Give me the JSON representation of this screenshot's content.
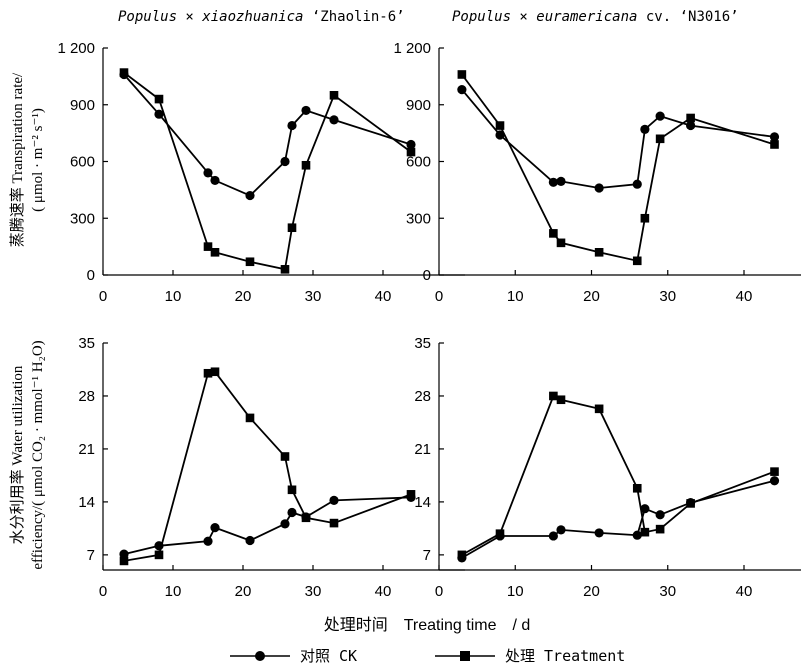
{
  "chart_data": [
    {
      "type": "line",
      "title": "Populus × xiaozhuanica ‘Zhaolin-6’",
      "xlim": [
        0,
        45
      ],
      "ylim": [
        0,
        1200
      ],
      "xticks": [
        "0",
        "10",
        "20",
        "30",
        "40"
      ],
      "yticks": [
        "0",
        "300",
        "600",
        "900",
        "1 200"
      ],
      "series": [
        {
          "name": "对照 CK",
          "x": [
            3,
            8,
            15,
            16,
            21,
            26,
            27,
            29,
            33,
            44
          ],
          "y": [
            1060,
            850,
            540,
            500,
            420,
            600,
            790,
            870,
            820,
            690
          ]
        },
        {
          "name": "处理 Treatment",
          "x": [
            3,
            8,
            15,
            16,
            21,
            26,
            27,
            29,
            33,
            44
          ],
          "y": [
            1070,
            930,
            150,
            120,
            70,
            30,
            250,
            580,
            950,
            650
          ]
        }
      ]
    },
    {
      "type": "line",
      "title": "Populus × euramericana cv. ‘N3016’",
      "xlim": [
        0,
        45
      ],
      "ylim": [
        0,
        1200
      ],
      "xticks": [
        "0",
        "10",
        "20",
        "30",
        "40"
      ],
      "yticks": [
        "0",
        "300",
        "600",
        "900",
        "1 200"
      ],
      "series": [
        {
          "name": "对照 CK",
          "x": [
            3,
            8,
            15,
            16,
            21,
            26,
            27,
            29,
            33,
            44
          ],
          "y": [
            980,
            740,
            490,
            495,
            460,
            480,
            770,
            840,
            790,
            730
          ]
        },
        {
          "name": "处理 Treatment",
          "x": [
            3,
            8,
            15,
            16,
            21,
            26,
            27,
            29,
            33,
            44
          ],
          "y": [
            1060,
            790,
            220,
            170,
            120,
            75,
            300,
            720,
            830,
            690
          ]
        }
      ]
    },
    {
      "type": "line",
      "title": "",
      "xlim": [
        0,
        45
      ],
      "ylim": [
        5,
        35
      ],
      "xticks": [
        "0",
        "10",
        "20",
        "30",
        "40"
      ],
      "yticks": [
        "7",
        "14",
        "21",
        "28",
        "35"
      ],
      "series": [
        {
          "name": "对照 CK",
          "x": [
            3,
            8,
            15,
            16,
            21,
            26,
            27,
            29,
            33,
            44
          ],
          "y": [
            7.1,
            8.2,
            8.8,
            10.6,
            8.9,
            11.1,
            12.6,
            12.0,
            14.2,
            14.6
          ]
        },
        {
          "name": "处理 Treatment",
          "x": [
            3,
            8,
            15,
            16,
            21,
            26,
            27,
            29,
            33,
            44
          ],
          "y": [
            6.2,
            7.0,
            31.0,
            31.2,
            25.1,
            20.0,
            15.6,
            11.9,
            11.2,
            15.0
          ]
        }
      ]
    },
    {
      "type": "line",
      "title": "",
      "xlim": [
        0,
        45
      ],
      "ylim": [
        5,
        35
      ],
      "xticks": [
        "0",
        "10",
        "20",
        "30",
        "40"
      ],
      "yticks": [
        "7",
        "14",
        "21",
        "28",
        "35"
      ],
      "series": [
        {
          "name": "对照 CK",
          "x": [
            3,
            8,
            15,
            16,
            21,
            26,
            27,
            29,
            33,
            44
          ],
          "y": [
            6.6,
            9.5,
            9.5,
            10.3,
            9.9,
            9.6,
            13.1,
            12.3,
            13.9,
            16.8
          ]
        },
        {
          "name": "处理 Treatment",
          "x": [
            3,
            8,
            15,
            16,
            21,
            26,
            27,
            29,
            33,
            44
          ],
          "y": [
            7.0,
            9.8,
            28.0,
            27.5,
            26.3,
            15.8,
            10.0,
            10.4,
            13.8,
            18.0
          ]
        }
      ]
    }
  ],
  "labels": {
    "title_left_italic": "Populus × xiaozhuanica",
    "title_left_cultivar": " ‘Zhaolin-6’",
    "title_right_italic": "Populus × euramericana",
    "title_right_cultivar": " cv. ‘N3016’",
    "ylabel_top_line1": "蒸腾速率 Transpiration rate/",
    "ylabel_top_line2": "( μmol · m⁻² s⁻¹)",
    "ylabel_bottom_line1": "水分利用率 Water utilization",
    "ylabel_bottom_line2": "efficiency/( μmol CO₂ · mmol⁻¹ H₂O)",
    "xlabel": "处理时间　Treating time　/ d"
  },
  "legend": {
    "ck_label": "对照 CK",
    "treatment_label": "处理 Treatment"
  }
}
